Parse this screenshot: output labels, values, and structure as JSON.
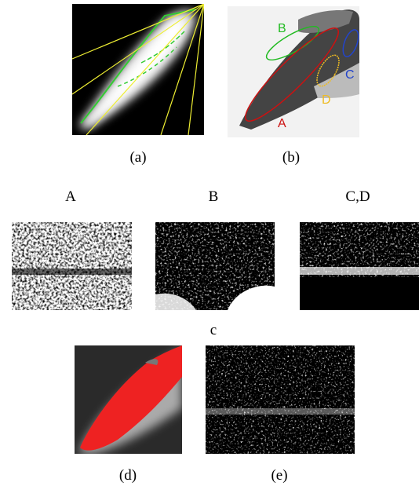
{
  "panel_a": {
    "caption": "(a)"
  },
  "panel_b": {
    "caption": "(b)",
    "labels": [
      "B",
      "A",
      "C",
      "D"
    ]
  },
  "panel_c": {
    "column_titles": [
      "A",
      "B",
      "C,D"
    ],
    "caption": "c"
  },
  "panel_d": {
    "caption": "(d)"
  },
  "panel_e": {
    "caption": "(e)"
  }
}
